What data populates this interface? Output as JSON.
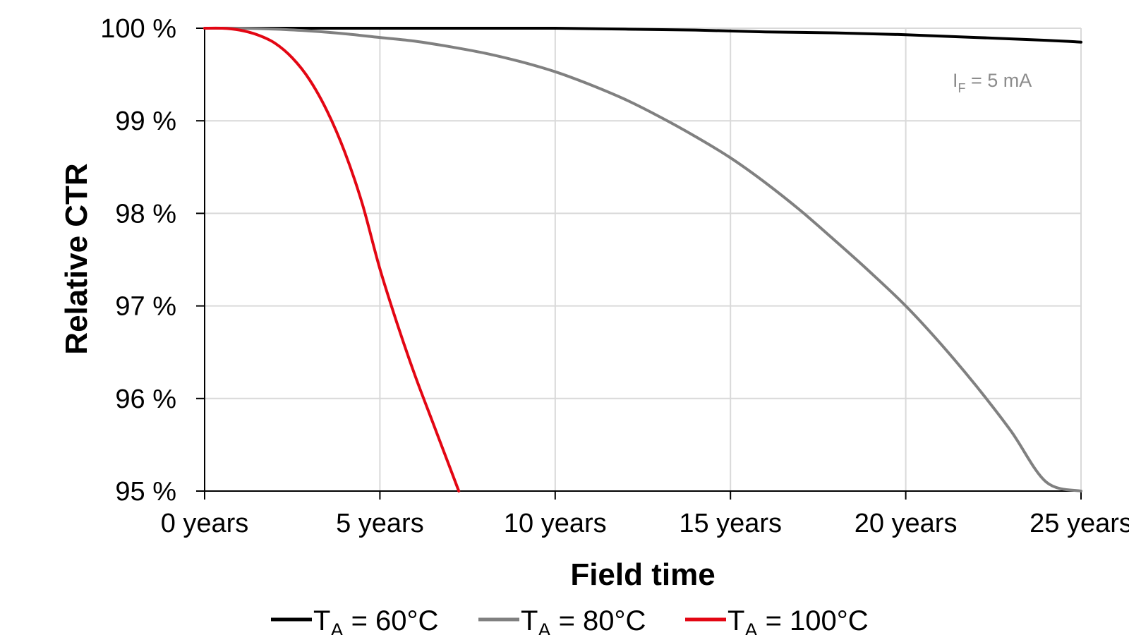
{
  "chart_data": {
    "type": "line",
    "xlabel": "Field time",
    "ylabel": "Relative CTR",
    "x_ticks": [
      {
        "value": 0,
        "label": "0 years"
      },
      {
        "value": 5,
        "label": "5 years"
      },
      {
        "value": 10,
        "label": "10 years"
      },
      {
        "value": 15,
        "label": "15 years"
      },
      {
        "value": 20,
        "label": "20 years"
      },
      {
        "value": 25,
        "label": "25 years"
      }
    ],
    "y_ticks": [
      {
        "value": 95,
        "label": "95 %"
      },
      {
        "value": 96,
        "label": "96 %"
      },
      {
        "value": 97,
        "label": "97 %"
      },
      {
        "value": 98,
        "label": "98 %"
      },
      {
        "value": 99,
        "label": "99 %"
      },
      {
        "value": 100,
        "label": "100 %"
      }
    ],
    "xlim": [
      0,
      25
    ],
    "ylim": [
      95,
      100
    ],
    "grid": true,
    "legend_position": "bottom",
    "annotation": {
      "main": "I",
      "sub": "F",
      "rest": " = 5 mA"
    },
    "series": [
      {
        "name": "T_A = 60°C",
        "legend": {
          "main": "T",
          "sub": "A",
          "rest": " = 60°C"
        },
        "color": "#000000",
        "x": [
          0,
          2,
          4,
          6,
          8,
          10,
          12,
          14,
          16,
          18,
          20,
          22,
          24,
          25
        ],
        "y": [
          100,
          100,
          100,
          100,
          100,
          100,
          99.99,
          99.98,
          99.96,
          99.95,
          99.93,
          99.9,
          99.87,
          99.85
        ]
      },
      {
        "name": "T_A = 80°C",
        "legend": {
          "main": "T",
          "sub": "A",
          "rest": " = 80°C"
        },
        "color": "#808080",
        "x": [
          0,
          1,
          2,
          3,
          4,
          5,
          6,
          7,
          8,
          9,
          10,
          11,
          12,
          13,
          14,
          15,
          16,
          17,
          18,
          19,
          20,
          21,
          22,
          23,
          24,
          25
        ],
        "y": [
          100,
          100,
          99.99,
          99.97,
          99.94,
          99.9,
          99.86,
          99.8,
          99.73,
          99.64,
          99.53,
          99.39,
          99.23,
          99.04,
          98.83,
          98.6,
          98.33,
          98.03,
          97.7,
          97.36,
          97.0,
          96.59,
          96.14,
          95.65,
          95.1,
          95.0
        ]
      },
      {
        "name": "T_A = 100°C",
        "legend": {
          "main": "T",
          "sub": "A",
          "rest": " = 100°C"
        },
        "color": "#e30613",
        "x": [
          0,
          0.5,
          1,
          1.5,
          2,
          2.5,
          3,
          3.5,
          4,
          4.5,
          5,
          5.5,
          6,
          6.5,
          7,
          7.25
        ],
        "y": [
          100,
          100,
          99.98,
          99.93,
          99.84,
          99.68,
          99.44,
          99.1,
          98.66,
          98.1,
          97.4,
          96.8,
          96.25,
          95.75,
          95.25,
          95.0
        ]
      }
    ]
  }
}
